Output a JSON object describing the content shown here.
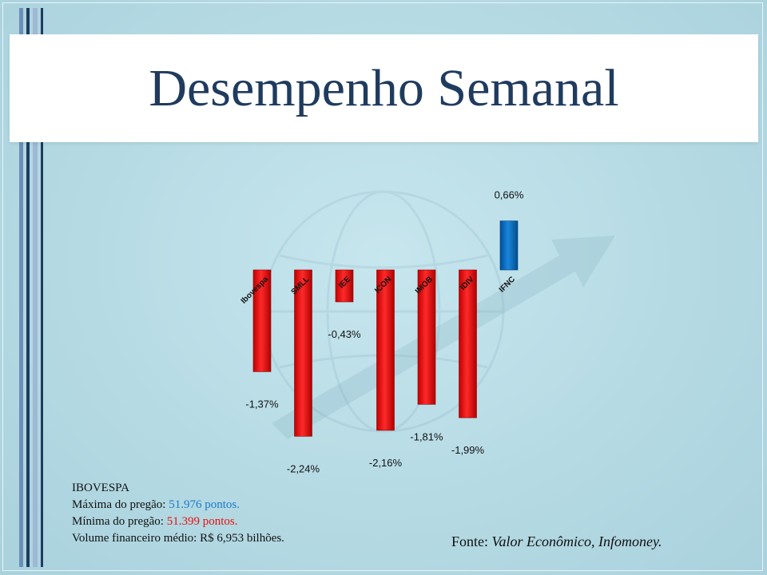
{
  "title": "Desempenho Semanal",
  "chart_data": {
    "type": "bar",
    "categories": [
      "Ibovespa",
      "SMLL",
      "IEE",
      "ICON",
      "IMOB",
      "IDIV",
      "IFNC"
    ],
    "values": [
      -1.37,
      -2.24,
      -0.43,
      -2.16,
      -1.81,
      -1.99,
      0.66
    ],
    "value_labels": [
      "-1,37%",
      "-2,24%",
      "-0,43%",
      "-2,16%",
      "-1,81%",
      "-1,99%",
      "0,66%"
    ],
    "ylim": [
      -2.24,
      0.66
    ],
    "colors": {
      "negative": "#ff0000",
      "positive": "#0070c0"
    },
    "grid": false,
    "legend": "none"
  },
  "info": {
    "heading": "IBOVESPA",
    "max_label": "Máxima  do pregão:",
    "max_value": "51.976 pontos.",
    "min_label": "Mínima  do pregão:",
    "min_value": "51.399 pontos.",
    "volume": "Volume  financeiro  médio: R$ 6,953 bilhões."
  },
  "source": {
    "label": "Fonte:",
    "text": "Valor Econômico, Infomoney."
  },
  "colors": {
    "title": "#1f3b5e",
    "highlight_blue": "#1f7ac8",
    "highlight_red": "#e8100c"
  }
}
